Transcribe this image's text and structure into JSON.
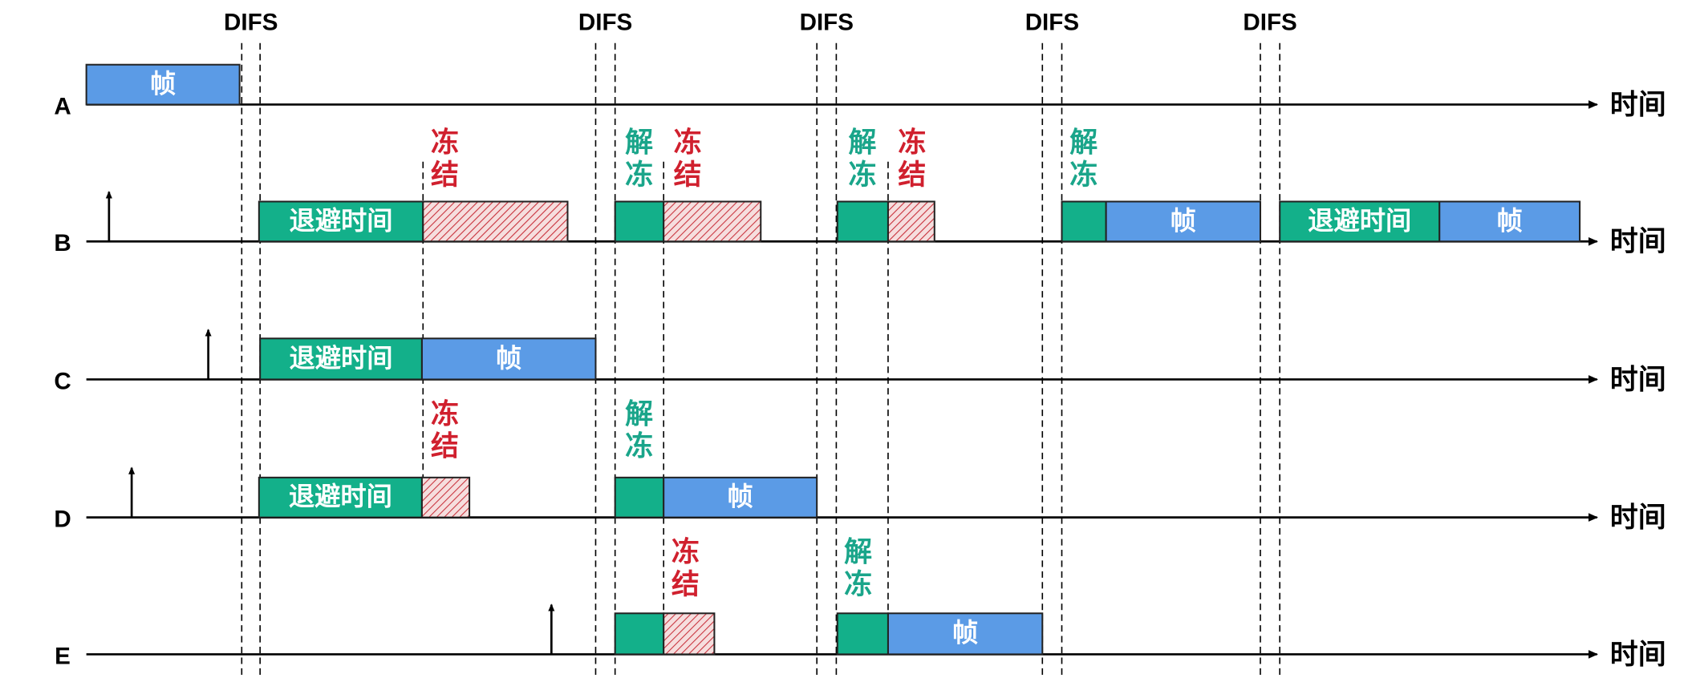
{
  "difs_labels": [
    "DIFS",
    "DIFS",
    "DIFS",
    "DIFS",
    "DIFS"
  ],
  "stations": [
    {
      "label": "A",
      "time_label": "时间",
      "blocks": [
        "帧"
      ],
      "notes": []
    },
    {
      "label": "B",
      "time_label": "时间",
      "blocks": [
        "退避时间",
        "帧",
        "退避时间",
        "帧"
      ],
      "notes": [
        "冻结",
        "解冻",
        "冻结",
        "解冻",
        "冻结",
        "解冻"
      ]
    },
    {
      "label": "C",
      "time_label": "时间",
      "blocks": [
        "退避时间",
        "帧"
      ],
      "notes": []
    },
    {
      "label": "D",
      "time_label": "时间",
      "blocks": [
        "退避时间",
        "帧"
      ],
      "notes": [
        "冻结",
        "解冻"
      ]
    },
    {
      "label": "E",
      "time_label": "时间",
      "blocks": [
        "帧"
      ],
      "notes": [
        "冻结",
        "解冻"
      ]
    }
  ]
}
